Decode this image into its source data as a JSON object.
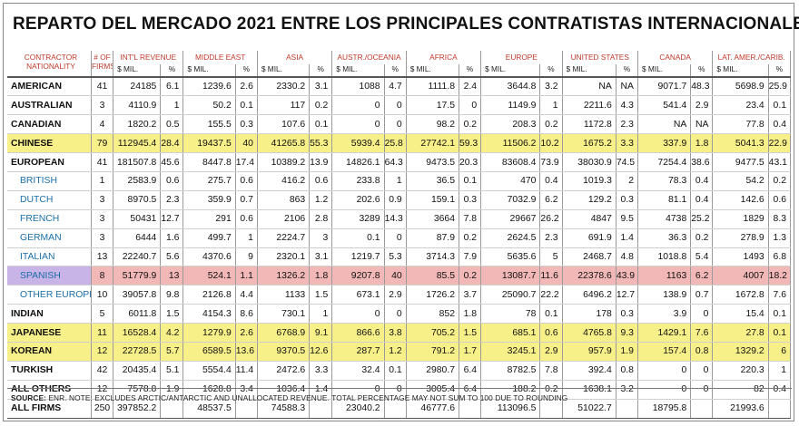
{
  "title": "REPARTO DEL MERCADO 2021 ENTRE LOS PRINCIPALES CONTRATISTAS INTERNACIONALES",
  "headers": {
    "nationality_line1": "CONTRACTOR",
    "nationality_line2": "NATIONALITY",
    "firms_line1": "# OF",
    "firms_line2": "FIRMS",
    "regions": [
      "INT'L REVENUE",
      "MIDDLE EAST",
      "ASIA",
      "AUSTR./OCEANIA",
      "AFRICA",
      "EUROPE",
      "UNITED STATES",
      "CANADA",
      "LAT. AMER./CARIB."
    ],
    "mil": "$ MIL.",
    "pct": "%"
  },
  "rows": [
    {
      "name": "AMERICAN",
      "type": "main",
      "firms": "41",
      "vals": [
        "24185",
        "6.1",
        "1239.6",
        "2.6",
        "2330.2",
        "3.1",
        "1088",
        "4.7",
        "1111.8",
        "2.4",
        "3644.8",
        "3.2",
        "NA",
        "NA",
        "9071.7",
        "48.3",
        "5698.9",
        "25.9"
      ]
    },
    {
      "name": "AUSTRALIAN",
      "type": "main",
      "firms": "3",
      "vals": [
        "4110.9",
        "1",
        "50.2",
        "0.1",
        "117",
        "0.2",
        "0",
        "0",
        "17.5",
        "0",
        "1149.9",
        "1",
        "2211.6",
        "4.3",
        "541.4",
        "2.9",
        "23.4",
        "0.1"
      ]
    },
    {
      "name": "CANADIAN",
      "type": "main",
      "firms": "4",
      "vals": [
        "1820.2",
        "0.5",
        "155.5",
        "0.3",
        "107.6",
        "0.1",
        "0",
        "0",
        "98.2",
        "0.2",
        "208.3",
        "0.2",
        "1172.8",
        "2.3",
        "NA",
        "NA",
        "77.8",
        "0.4"
      ]
    },
    {
      "name": "CHINESE",
      "type": "main",
      "hl": "y",
      "firms": "79",
      "vals": [
        "112945.4",
        "28.4",
        "19437.5",
        "40",
        "41265.8",
        "55.3",
        "5939.4",
        "25.8",
        "27742.1",
        "59.3",
        "11506.2",
        "10.2",
        "1675.2",
        "3.3",
        "337.9",
        "1.8",
        "5041.3",
        "22.9"
      ]
    },
    {
      "name": "EUROPEAN",
      "type": "main",
      "firms": "41",
      "vals": [
        "181507.8",
        "45.6",
        "8447.8",
        "17.4",
        "10389.2",
        "13.9",
        "14826.1",
        "64.3",
        "9473.5",
        "20.3",
        "83608.4",
        "73.9",
        "38030.9",
        "74.5",
        "7254.4",
        "38.6",
        "9477.5",
        "43.1"
      ]
    },
    {
      "name": "BRITISH",
      "type": "sub",
      "firms": "1",
      "vals": [
        "2583.9",
        "0.6",
        "275.7",
        "0.6",
        "416.2",
        "0.6",
        "233.8",
        "1",
        "36.5",
        "0.1",
        "470",
        "0.4",
        "1019.3",
        "2",
        "78.3",
        "0.4",
        "54.2",
        "0.2"
      ]
    },
    {
      "name": "DUTCH",
      "type": "sub",
      "firms": "3",
      "vals": [
        "8970.5",
        "2.3",
        "359.9",
        "0.7",
        "863",
        "1.2",
        "202.6",
        "0.9",
        "159.1",
        "0.3",
        "7032.9",
        "6.2",
        "129.2",
        "0.3",
        "81.1",
        "0.4",
        "142.6",
        "0.6"
      ]
    },
    {
      "name": "FRENCH",
      "type": "sub",
      "firms": "3",
      "vals": [
        "50431",
        "12.7",
        "291",
        "0.6",
        "2106",
        "2.8",
        "3289",
        "14.3",
        "3664",
        "7.8",
        "29667",
        "26.2",
        "4847",
        "9.5",
        "4738",
        "25.2",
        "1829",
        "8.3"
      ]
    },
    {
      "name": "GERMAN",
      "type": "sub",
      "firms": "3",
      "vals": [
        "6444",
        "1.6",
        "499.7",
        "1",
        "2224.7",
        "3",
        "0.1",
        "0",
        "87.9",
        "0.2",
        "2624.5",
        "2.3",
        "691.9",
        "1.4",
        "36.3",
        "0.2",
        "278.9",
        "1.3"
      ]
    },
    {
      "name": "ITALIAN",
      "type": "sub",
      "firms": "13",
      "vals": [
        "22240.7",
        "5.6",
        "4370.6",
        "9",
        "2320.1",
        "3.1",
        "1219.7",
        "5.3",
        "3714.3",
        "7.9",
        "5635.6",
        "5",
        "2468.7",
        "4.8",
        "1018.8",
        "5.4",
        "1493",
        "6.8"
      ]
    },
    {
      "name": "SPANISH",
      "type": "sub",
      "hl": "p",
      "firms": "8",
      "vals": [
        "51779.9",
        "13",
        "524.1",
        "1.1",
        "1326.2",
        "1.8",
        "9207.8",
        "40",
        "85.5",
        "0.2",
        "13087.7",
        "11.6",
        "22378.6",
        "43.9",
        "1163",
        "6.2",
        "4007",
        "18.2"
      ]
    },
    {
      "name": "OTHER EUROPEAN",
      "type": "sub",
      "firms": "10",
      "vals": [
        "39057.8",
        "9.8",
        "2126.8",
        "4.4",
        "1133",
        "1.5",
        "673.1",
        "2.9",
        "1726.2",
        "3.7",
        "25090.7",
        "22.2",
        "6496.2",
        "12.7",
        "138.9",
        "0.7",
        "1672.8",
        "7.6"
      ]
    },
    {
      "name": "INDIAN",
      "type": "main",
      "firms": "5",
      "vals": [
        "6011.8",
        "1.5",
        "4154.3",
        "8.6",
        "730.1",
        "1",
        "0",
        "0",
        "852",
        "1.8",
        "78",
        "0.1",
        "178",
        "0.3",
        "3.9",
        "0",
        "15.4",
        "0.1"
      ]
    },
    {
      "name": "JAPANESE",
      "type": "main",
      "hl": "y",
      "firms": "11",
      "vals": [
        "16528.4",
        "4.2",
        "1279.9",
        "2.6",
        "6768.9",
        "9.1",
        "866.6",
        "3.8",
        "705.2",
        "1.5",
        "685.1",
        "0.6",
        "4765.8",
        "9.3",
        "1429.1",
        "7.6",
        "27.8",
        "0.1"
      ]
    },
    {
      "name": "KOREAN",
      "type": "main",
      "hl": "y",
      "firms": "12",
      "vals": [
        "22728.5",
        "5.7",
        "6589.5",
        "13.6",
        "9370.5",
        "12.6",
        "287.7",
        "1.2",
        "791.2",
        "1.7",
        "3245.1",
        "2.9",
        "957.9",
        "1.9",
        "157.4",
        "0.8",
        "1329.2",
        "6"
      ]
    },
    {
      "name": "TURKISH",
      "type": "main",
      "firms": "42",
      "vals": [
        "20435.4",
        "5.1",
        "5554.4",
        "11.4",
        "2472.6",
        "3.3",
        "32.4",
        "0.1",
        "2980.7",
        "6.4",
        "8782.5",
        "7.8",
        "392.4",
        "0.8",
        "0",
        "0",
        "220.3",
        "1"
      ]
    },
    {
      "name": "ALL OTHERS",
      "type": "main",
      "firms": "12",
      "vals": [
        "7578.8",
        "1.9",
        "1628.8",
        "3.4",
        "1036.4",
        "1.4",
        "0",
        "0",
        "3005.4",
        "6.4",
        "188.2",
        "0.2",
        "1638.1",
        "3.2",
        "0",
        "0",
        "82",
        "0.4"
      ]
    },
    {
      "name": "ALL FIRMS",
      "type": "main",
      "total": true,
      "firms": "250",
      "vals": [
        "397852.2",
        "",
        "48537.5",
        "",
        "74588.3",
        "",
        "23040.2",
        "",
        "46777.6",
        "",
        "113096.5",
        "",
        "51022.7",
        "",
        "18795.8",
        "",
        "21993.6",
        ""
      ]
    }
  ],
  "source_label": "SOURCE:",
  "source_text": "ENR. NOTE: EXCLUDES ARCTIC/ANTARCTIC AND UNALLOCATED REVENUE. TOTAL PERCENTAGE MAY NOT SUM TO 100 DUE TO ROUNDING",
  "colors": {
    "highlight_yellow": "#f7f089",
    "highlight_pink": "#f2b7b7",
    "highlight_purple": "#c9b4e8",
    "region_header": "#c0392b",
    "sub_nationality": "#1a6fa8"
  }
}
